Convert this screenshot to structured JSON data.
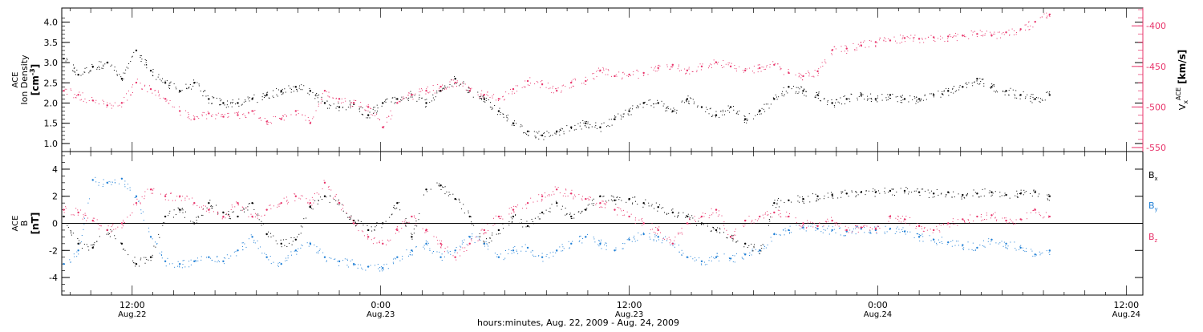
{
  "chart_data": [
    {
      "type": "scatter",
      "panel": "ion-density-velocity",
      "xlabel": "hours:minutes, Aug. 22, 2009 - Aug. 24, 2009",
      "x_unit": "hours since 00:00 Aug. 22",
      "xlim": [
        8.6,
        60.8
      ],
      "x_ticks": [
        {
          "x": 12,
          "time": "12:00",
          "date": "Aug.22"
        },
        {
          "x": 24,
          "time": "0:00",
          "date": "Aug.23"
        },
        {
          "x": 36,
          "time": "12:00",
          "date": "Aug.23"
        },
        {
          "x": 48,
          "time": "0:00",
          "date": "Aug.24"
        },
        {
          "x": 60,
          "time": "12:00",
          "date": "Aug.24"
        }
      ],
      "ylabel_left": {
        "line1": "ACE",
        "line2": "Ion Density",
        "unit": "[cm",
        "unit_sup": "-3",
        "unit_end": "]"
      },
      "ylim_left": [
        0.8,
        4.35
      ],
      "yticks_left": [
        "1.0",
        "1.5",
        "2.0",
        "2.5",
        "3.0",
        "3.5",
        "4.0"
      ],
      "ylabel_right": {
        "main": "V",
        "sub": "x",
        "sup": "ACE",
        "unit": "[km/s]"
      },
      "ylim_right": [
        -555,
        -378
      ],
      "yticks_right": [
        "-400",
        "-450",
        "-500",
        "-550"
      ],
      "series": [
        {
          "color": "#000000",
          "x": [
            8.7,
            9.4,
            10.1,
            10.8,
            11.5,
            12.2,
            12.9,
            13.6,
            14.3,
            15.0,
            15.7,
            16.4,
            17.1,
            17.8,
            18.5,
            19.2,
            19.9,
            20.6,
            21.3,
            22.0,
            22.7,
            23.4,
            24.1,
            24.8,
            25.5,
            26.2,
            26.9,
            27.6,
            28.3,
            29.0,
            29.7,
            30.4,
            31.1,
            31.8,
            32.5,
            33.2,
            33.9,
            34.6,
            35.3,
            36.0,
            36.7,
            37.4,
            38.1,
            38.8,
            39.5,
            40.2,
            40.9,
            41.6,
            42.3,
            43.0,
            43.7,
            44.4,
            45.1,
            45.8,
            46.5,
            47.2,
            47.9,
            48.6,
            49.3,
            50.0,
            50.7,
            51.4,
            52.1,
            52.8,
            53.5,
            54.2,
            54.9,
            55.6,
            56.3
          ],
          "y": [
            3.1,
            2.7,
            2.9,
            3.0,
            2.6,
            3.3,
            2.8,
            2.5,
            2.3,
            2.5,
            2.1,
            2.0,
            2.0,
            2.1,
            2.2,
            2.3,
            2.4,
            2.3,
            2.0,
            1.9,
            2.0,
            1.7,
            2.0,
            2.1,
            2.2,
            2.0,
            2.3,
            2.6,
            2.3,
            2.1,
            1.8,
            1.5,
            1.3,
            1.2,
            1.3,
            1.4,
            1.5,
            1.4,
            1.6,
            1.8,
            2.0,
            2.0,
            1.8,
            2.1,
            1.9,
            1.7,
            1.9,
            1.6,
            1.8,
            2.1,
            2.4,
            2.3,
            2.2,
            2.0,
            2.1,
            2.2,
            2.1,
            2.2,
            2.1,
            2.1,
            2.2,
            2.3,
            2.4,
            2.6,
            2.4,
            2.3,
            2.2,
            2.1,
            2.2
          ]
        },
        {
          "color": "#e8336a",
          "x": [
            8.7,
            9.4,
            10.1,
            10.8,
            11.5,
            12.2,
            12.9,
            13.6,
            14.3,
            15.0,
            15.7,
            16.4,
            17.1,
            17.8,
            18.5,
            19.2,
            19.9,
            20.6,
            21.3,
            22.0,
            22.7,
            23.4,
            24.1,
            24.8,
            25.5,
            26.2,
            26.9,
            27.6,
            28.3,
            29.0,
            29.7,
            30.4,
            31.1,
            31.8,
            32.5,
            33.2,
            33.9,
            34.6,
            35.3,
            36.0,
            36.7,
            37.4,
            38.1,
            38.8,
            39.5,
            40.2,
            40.9,
            41.6,
            42.3,
            43.0,
            43.7,
            44.4,
            45.1,
            45.8,
            46.5,
            47.2,
            47.9,
            48.6,
            49.3,
            50.0,
            50.7,
            51.4,
            52.1,
            52.8,
            53.5,
            54.2,
            54.9,
            55.6,
            56.3
          ],
          "y": [
            -480,
            -485,
            -492,
            -498,
            -495,
            -470,
            -478,
            -490,
            -505,
            -515,
            -508,
            -512,
            -510,
            -505,
            -518,
            -515,
            -505,
            -520,
            -480,
            -490,
            -495,
            -500,
            -525,
            -495,
            -485,
            -480,
            -475,
            -470,
            -480,
            -485,
            -490,
            -478,
            -468,
            -472,
            -480,
            -470,
            -468,
            -455,
            -462,
            -460,
            -458,
            -452,
            -448,
            -455,
            -450,
            -445,
            -450,
            -455,
            -452,
            -448,
            -458,
            -462,
            -456,
            -430,
            -428,
            -424,
            -420,
            -418,
            -415,
            -416,
            -414,
            -413,
            -412,
            -410,
            -412,
            -408,
            -404,
            -395,
            -386
          ]
        }
      ]
    },
    {
      "type": "scatter",
      "panel": "magnetic-field",
      "xlim": [
        8.6,
        60.8
      ],
      "ylabel": {
        "line1": "ACE",
        "line2": "B",
        "unit": "[nT]"
      },
      "ylim": [
        -5.3,
        5.3
      ],
      "yticks": [
        "4",
        "2",
        "0",
        "-2",
        "-4"
      ],
      "zero_line": true,
      "series": [
        {
          "name": "B",
          "sub": "x",
          "color": "#000000",
          "x": [
            8.7,
            9.4,
            10.1,
            10.8,
            11.5,
            12.2,
            12.9,
            13.6,
            14.3,
            15.0,
            15.7,
            16.4,
            17.1,
            17.8,
            18.5,
            19.2,
            19.9,
            20.6,
            21.3,
            22.0,
            22.7,
            23.4,
            24.1,
            24.8,
            25.5,
            26.2,
            26.9,
            27.6,
            28.3,
            29.0,
            29.7,
            30.4,
            31.1,
            31.8,
            32.5,
            33.2,
            33.9,
            34.6,
            35.3,
            36.0,
            36.7,
            37.4,
            38.1,
            38.8,
            39.5,
            40.2,
            40.9,
            41.6,
            42.3,
            43.0,
            43.7,
            44.4,
            45.1,
            45.8,
            46.5,
            47.2,
            47.9,
            48.6,
            49.3,
            50.0,
            50.7,
            51.4,
            52.1,
            52.8,
            53.5,
            54.2,
            54.9,
            55.6,
            56.3
          ],
          "y": [
            0.5,
            -1.5,
            -1.8,
            -0.5,
            -1.5,
            -3.0,
            -2.5,
            0.5,
            1.0,
            0.0,
            1.5,
            0.8,
            0.5,
            1.5,
            -0.8,
            -1.5,
            -1.2,
            1.2,
            2.0,
            1.5,
            0.2,
            -0.5,
            0.0,
            1.5,
            -1.0,
            2.5,
            2.8,
            1.8,
            0.5,
            -1.5,
            -0.5,
            0.5,
            -0.2,
            0.8,
            1.5,
            0.5,
            1.0,
            2.0,
            1.7,
            1.8,
            1.5,
            1.2,
            0.8,
            0.5,
            0.0,
            -0.5,
            -1.0,
            -1.5,
            -2.0,
            1.5,
            1.7,
            1.8,
            2.0,
            2.1,
            2.2,
            2.3,
            2.3,
            2.4,
            2.4,
            2.3,
            2.2,
            2.3,
            2.1,
            2.2,
            2.3,
            2.1,
            2.2,
            2.3,
            2.0
          ]
        },
        {
          "name": "B",
          "sub": "y",
          "color": "#1f7fd6",
          "x": [
            8.7,
            9.4,
            10.1,
            10.8,
            11.5,
            12.2,
            12.9,
            13.6,
            14.3,
            15.0,
            15.7,
            16.4,
            17.1,
            17.8,
            18.5,
            19.2,
            19.9,
            20.6,
            21.3,
            22.0,
            22.7,
            23.4,
            24.1,
            24.8,
            25.5,
            26.2,
            26.9,
            27.6,
            28.3,
            29.0,
            29.7,
            30.4,
            31.1,
            31.8,
            32.5,
            33.2,
            33.9,
            34.6,
            35.3,
            36.0,
            36.7,
            37.4,
            38.1,
            38.8,
            39.5,
            40.2,
            40.9,
            41.6,
            42.3,
            43.0,
            43.7,
            44.4,
            45.1,
            45.8,
            46.5,
            47.2,
            47.9,
            48.6,
            49.3,
            50.0,
            50.7,
            51.4,
            52.1,
            52.8,
            53.5,
            54.2,
            54.9,
            55.6,
            56.3
          ],
          "y": [
            -3.0,
            -2.0,
            3.2,
            3.0,
            3.3,
            2.0,
            -1.0,
            -2.8,
            -3.0,
            -2.8,
            -2.5,
            -2.8,
            -2.0,
            -1.0,
            -2.5,
            -3.0,
            -2.0,
            -1.5,
            -2.5,
            -2.8,
            -3.0,
            -3.2,
            -3.3,
            -2.5,
            -2.0,
            -1.5,
            -2.5,
            -2.0,
            -1.0,
            -1.5,
            -2.5,
            -2.0,
            -1.8,
            -2.5,
            -2.0,
            -1.5,
            -1.0,
            -1.5,
            -2.0,
            -1.2,
            -0.8,
            -1.0,
            -1.5,
            -2.5,
            -2.8,
            -2.5,
            -2.6,
            -2.3,
            -2.0,
            -0.8,
            -0.5,
            -0.3,
            -0.4,
            -0.5,
            -0.6,
            -0.4,
            -0.5,
            -0.4,
            -0.6,
            -1.0,
            -1.2,
            -1.4,
            -1.6,
            -1.8,
            -1.2,
            -1.5,
            -1.8,
            -2.3,
            -2.0
          ]
        },
        {
          "name": "B",
          "sub": "z",
          "color": "#e8336a",
          "x": [
            8.7,
            9.4,
            10.1,
            10.8,
            11.5,
            12.2,
            12.9,
            13.6,
            14.3,
            15.0,
            15.7,
            16.4,
            17.1,
            17.8,
            18.5,
            19.2,
            19.9,
            20.6,
            21.3,
            22.0,
            22.7,
            23.4,
            24.1,
            24.8,
            25.5,
            26.2,
            26.9,
            27.6,
            28.3,
            29.0,
            29.7,
            30.4,
            31.1,
            31.8,
            32.5,
            33.2,
            33.9,
            34.6,
            35.3,
            36.0,
            36.7,
            37.4,
            38.1,
            38.8,
            39.5,
            40.2,
            40.9,
            41.6,
            42.3,
            43.0,
            43.7,
            44.4,
            45.1,
            45.8,
            46.5,
            47.2,
            47.9,
            48.6,
            49.3,
            50.0,
            50.7,
            51.4,
            52.1,
            52.8,
            53.5,
            54.2,
            54.9,
            55.6,
            56.3
          ],
          "y": [
            1.0,
            0.8,
            0.2,
            -0.5,
            0.0,
            1.5,
            2.5,
            2.0,
            2.0,
            1.5,
            1.0,
            0.5,
            1.5,
            0.5,
            1.0,
            1.5,
            2.0,
            1.5,
            3.0,
            1.5,
            0.0,
            -1.0,
            -1.5,
            -0.5,
            0.5,
            -0.5,
            -1.5,
            -2.5,
            -1.5,
            -0.5,
            0.5,
            1.0,
            1.5,
            2.0,
            2.5,
            2.2,
            1.8,
            1.5,
            1.0,
            0.5,
            0.0,
            -0.5,
            -1.5,
            0.0,
            0.5,
            1.0,
            -1.0,
            0.2,
            0.5,
            0.8,
            0.5,
            0.0,
            -0.2,
            0.2,
            -0.5,
            -0.3,
            -0.4,
            0.5,
            0.3,
            -0.2,
            -0.5,
            0.0,
            0.3,
            0.5,
            0.6,
            0.2,
            0.3,
            1.0,
            0.5
          ]
        }
      ]
    }
  ]
}
